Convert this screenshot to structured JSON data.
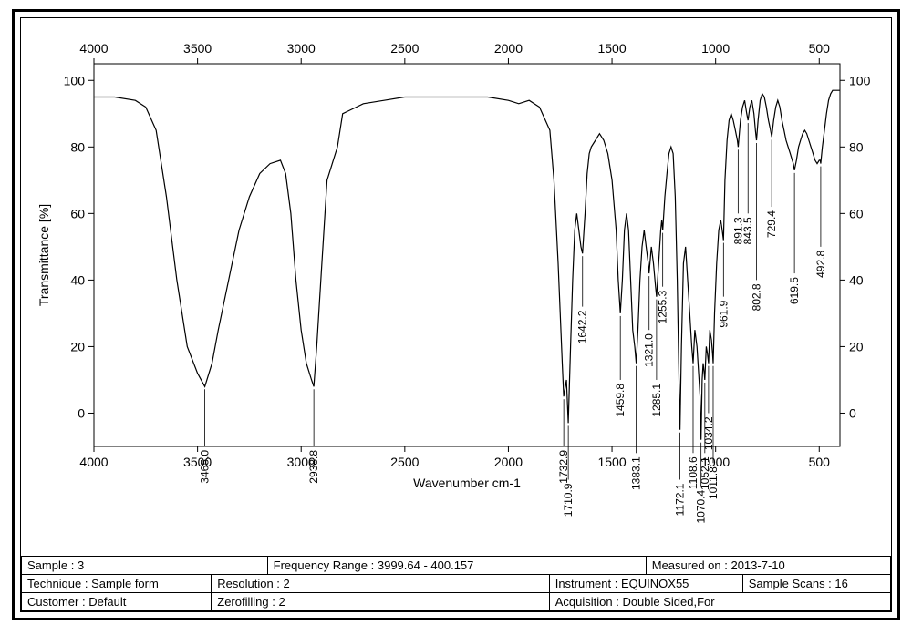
{
  "chart": {
    "type": "line",
    "x_axis_label": "Wavenumber cm-1",
    "y_axis_label": "Transmittance [%]",
    "x_reversed": true,
    "xlim": [
      4000,
      400
    ],
    "ylim": [
      -10,
      105
    ],
    "x_ticks": [
      4000,
      3500,
      3000,
      2500,
      2000,
      1500,
      1000,
      500
    ],
    "y_ticks": [
      0,
      20,
      40,
      60,
      80,
      100
    ],
    "line_color": "#000000",
    "background_color": "#ffffff",
    "axis_color": "#000000",
    "tick_fontsize": 14,
    "label_fontsize": 14,
    "peak_fontsize": 12,
    "spectrum": [
      [
        4000,
        95
      ],
      [
        3900,
        95
      ],
      [
        3800,
        94
      ],
      [
        3750,
        92
      ],
      [
        3700,
        85
      ],
      [
        3650,
        65
      ],
      [
        3600,
        40
      ],
      [
        3550,
        20
      ],
      [
        3500,
        12
      ],
      [
        3465,
        8
      ],
      [
        3430,
        15
      ],
      [
        3400,
        25
      ],
      [
        3350,
        40
      ],
      [
        3300,
        55
      ],
      [
        3250,
        65
      ],
      [
        3200,
        72
      ],
      [
        3150,
        75
      ],
      [
        3100,
        76
      ],
      [
        3075,
        72
      ],
      [
        3050,
        60
      ],
      [
        3025,
        40
      ],
      [
        3000,
        25
      ],
      [
        2975,
        15
      ],
      [
        2950,
        10
      ],
      [
        2938.8,
        8
      ],
      [
        2925,
        20
      ],
      [
        2900,
        45
      ],
      [
        2875,
        70
      ],
      [
        2850,
        75
      ],
      [
        2825,
        80
      ],
      [
        2800,
        90
      ],
      [
        2700,
        93
      ],
      [
        2600,
        94
      ],
      [
        2500,
        95
      ],
      [
        2400,
        95
      ],
      [
        2300,
        95
      ],
      [
        2200,
        95
      ],
      [
        2100,
        95
      ],
      [
        2000,
        94
      ],
      [
        1950,
        93
      ],
      [
        1900,
        94
      ],
      [
        1850,
        92
      ],
      [
        1800,
        85
      ],
      [
        1780,
        70
      ],
      [
        1760,
        45
      ],
      [
        1740,
        15
      ],
      [
        1732.9,
        5
      ],
      [
        1720,
        10
      ],
      [
        1710.9,
        -3
      ],
      [
        1700,
        20
      ],
      [
        1690,
        40
      ],
      [
        1680,
        55
      ],
      [
        1670,
        60
      ],
      [
        1660,
        55
      ],
      [
        1650,
        50
      ],
      [
        1642.2,
        48
      ],
      [
        1630,
        60
      ],
      [
        1620,
        72
      ],
      [
        1610,
        78
      ],
      [
        1600,
        80
      ],
      [
        1580,
        82
      ],
      [
        1560,
        84
      ],
      [
        1540,
        82
      ],
      [
        1520,
        78
      ],
      [
        1500,
        70
      ],
      [
        1480,
        55
      ],
      [
        1470,
        40
      ],
      [
        1459.8,
        30
      ],
      [
        1450,
        40
      ],
      [
        1440,
        55
      ],
      [
        1430,
        60
      ],
      [
        1420,
        55
      ],
      [
        1410,
        40
      ],
      [
        1400,
        25
      ],
      [
        1390,
        20
      ],
      [
        1383.1,
        15
      ],
      [
        1375,
        25
      ],
      [
        1365,
        40
      ],
      [
        1355,
        50
      ],
      [
        1345,
        55
      ],
      [
        1335,
        50
      ],
      [
        1325,
        45
      ],
      [
        1321,
        42
      ],
      [
        1310,
        50
      ],
      [
        1300,
        45
      ],
      [
        1290,
        38
      ],
      [
        1285.1,
        35
      ],
      [
        1275,
        45
      ],
      [
        1265,
        55
      ],
      [
        1260,
        58
      ],
      [
        1255.3,
        55
      ],
      [
        1245,
        65
      ],
      [
        1235,
        72
      ],
      [
        1225,
        78
      ],
      [
        1215,
        80
      ],
      [
        1205,
        78
      ],
      [
        1195,
        65
      ],
      [
        1185,
        40
      ],
      [
        1178,
        15
      ],
      [
        1172.1,
        -5
      ],
      [
        1165,
        20
      ],
      [
        1155,
        45
      ],
      [
        1145,
        50
      ],
      [
        1135,
        40
      ],
      [
        1125,
        30
      ],
      [
        1115,
        20
      ],
      [
        1108.6,
        15
      ],
      [
        1100,
        25
      ],
      [
        1090,
        20
      ],
      [
        1080,
        10
      ],
      [
        1075,
        5
      ],
      [
        1070.4,
        -8
      ],
      [
        1065,
        10
      ],
      [
        1060,
        15
      ],
      [
        1055,
        12
      ],
      [
        1052.1,
        10
      ],
      [
        1045,
        20
      ],
      [
        1040,
        18
      ],
      [
        1034.2,
        15
      ],
      [
        1028,
        25
      ],
      [
        1020,
        22
      ],
      [
        1015,
        18
      ],
      [
        1011.8,
        15
      ],
      [
        1005,
        30
      ],
      [
        995,
        45
      ],
      [
        985,
        55
      ],
      [
        975,
        58
      ],
      [
        968,
        55
      ],
      [
        961.9,
        52
      ],
      [
        955,
        70
      ],
      [
        945,
        82
      ],
      [
        935,
        88
      ],
      [
        925,
        90
      ],
      [
        915,
        88
      ],
      [
        905,
        85
      ],
      [
        895,
        82
      ],
      [
        891.3,
        80
      ],
      [
        880,
        88
      ],
      [
        870,
        92
      ],
      [
        860,
        94
      ],
      [
        850,
        90
      ],
      [
        843.5,
        88
      ],
      [
        835,
        92
      ],
      [
        825,
        94
      ],
      [
        815,
        90
      ],
      [
        808,
        85
      ],
      [
        802.8,
        82
      ],
      [
        795,
        88
      ],
      [
        785,
        94
      ],
      [
        775,
        96
      ],
      [
        765,
        95
      ],
      [
        755,
        92
      ],
      [
        745,
        88
      ],
      [
        735,
        85
      ],
      [
        729.4,
        83
      ],
      [
        720,
        88
      ],
      [
        710,
        92
      ],
      [
        700,
        94
      ],
      [
        690,
        92
      ],
      [
        680,
        88
      ],
      [
        670,
        85
      ],
      [
        660,
        82
      ],
      [
        650,
        80
      ],
      [
        640,
        78
      ],
      [
        630,
        76
      ],
      [
        625,
        75
      ],
      [
        619.5,
        73
      ],
      [
        610,
        76
      ],
      [
        600,
        80
      ],
      [
        590,
        82
      ],
      [
        580,
        84
      ],
      [
        570,
        85
      ],
      [
        560,
        84
      ],
      [
        550,
        82
      ],
      [
        540,
        80
      ],
      [
        530,
        78
      ],
      [
        520,
        76
      ],
      [
        510,
        75
      ],
      [
        500,
        76
      ],
      [
        495,
        76
      ],
      [
        492.8,
        75
      ],
      [
        485,
        80
      ],
      [
        475,
        85
      ],
      [
        465,
        90
      ],
      [
        455,
        94
      ],
      [
        445,
        96
      ],
      [
        435,
        97
      ],
      [
        425,
        97
      ],
      [
        415,
        97
      ],
      [
        405,
        97
      ],
      [
        400,
        97
      ]
    ],
    "peaks": [
      {
        "wn": 3465.0,
        "t": 8,
        "y_end": -10
      },
      {
        "wn": 2938.8,
        "t": 8,
        "y_end": -10
      },
      {
        "wn": 1732.9,
        "t": 5,
        "y_end": -10
      },
      {
        "wn": 1710.9,
        "t": -3,
        "y_end": -20
      },
      {
        "wn": 1642.2,
        "t": 48,
        "y_end": 32
      },
      {
        "wn": 1459.8,
        "t": 30,
        "y_end": 10
      },
      {
        "wn": 1383.1,
        "t": 15,
        "y_end": -12
      },
      {
        "wn": 1321.0,
        "t": 42,
        "y_end": 25
      },
      {
        "wn": 1285.1,
        "t": 35,
        "y_end": 10
      },
      {
        "wn": 1255.3,
        "t": 55,
        "y_end": 38
      },
      {
        "wn": 1172.1,
        "t": -5,
        "y_end": -20
      },
      {
        "wn": 1108.6,
        "t": 15,
        "y_end": -12
      },
      {
        "wn": 1070.4,
        "t": -8,
        "y_end": -22
      },
      {
        "wn": 1052.1,
        "t": 10,
        "y_end": -12
      },
      {
        "wn": 1034.2,
        "t": 15,
        "y_end": 0
      },
      {
        "wn": 1011.8,
        "t": 15,
        "y_end": -15
      },
      {
        "wn": 961.9,
        "t": 52,
        "y_end": 35
      },
      {
        "wn": 891.3,
        "t": 80,
        "y_end": 60
      },
      {
        "wn": 843.5,
        "t": 88,
        "y_end": 60
      },
      {
        "wn": 802.8,
        "t": 82,
        "y_end": 40
      },
      {
        "wn": 729.4,
        "t": 83,
        "y_end": 62
      },
      {
        "wn": 619.5,
        "t": 73,
        "y_end": 42
      },
      {
        "wn": 492.8,
        "t": 75,
        "y_end": 50
      }
    ]
  },
  "meta": {
    "r1c1_label": "Sample :",
    "r1c1_value": "3",
    "r1c2_label": "Frequency Range :",
    "r1c2_value": "3999.64 - 400.157",
    "r1c3_label": "Measured on :",
    "r1c3_value": "2013-7-10",
    "r2c1_label": "Technique :",
    "r2c1_value": "Sample form",
    "r2c2_label": "Resolution :",
    "r2c2_value": "2",
    "r2c3_label": "Instrument :",
    "r2c3_value": "EQUINOX55",
    "r2c4_label": "Sample Scans :",
    "r2c4_value": "16",
    "r3c1_label": "Customer :",
    "r3c1_value": "Default",
    "r3c2_label": "Zerofilling :",
    "r3c2_value": "2",
    "r3c3_label": "Acquisition :",
    "r3c3_value": "Double Sided,For"
  }
}
